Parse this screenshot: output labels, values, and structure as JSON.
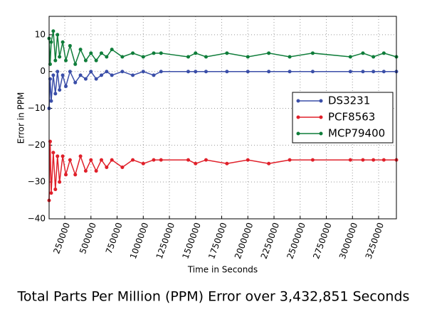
{
  "chart_data": {
    "type": "line",
    "title": "Total Parts Per Million (PPM) Error over 3,432,851 Seconds",
    "x_label": "Time in Seconds",
    "y_label": "Error in PPM",
    "x": [
      100000,
      110000,
      120000,
      140000,
      160000,
      180000,
      200000,
      230000,
      260000,
      300000,
      350000,
      400000,
      450000,
      500000,
      550000,
      600000,
      650000,
      700000,
      800000,
      900000,
      1000000,
      1100000,
      1170000,
      1430000,
      1500000,
      1600000,
      1800000,
      2000000,
      2200000,
      2400000,
      2620000,
      2980000,
      3100000,
      3200000,
      3300000,
      3420000
    ],
    "series": [
      {
        "name": "DS3231",
        "color": "#3a4ea8",
        "values": [
          -10,
          -2,
          -8,
          -1,
          -6,
          0,
          -5,
          -1,
          -4,
          0,
          -3,
          -1,
          -2,
          0,
          -2,
          -1,
          0,
          -1,
          0,
          -1,
          0,
          -1,
          0,
          0,
          0,
          0,
          0,
          0,
          0,
          0,
          0,
          0,
          0,
          0,
          0,
          0
        ]
      },
      {
        "name": "PCF8563",
        "color": "#e0202a",
        "values": [
          -35,
          -19,
          -33,
          -22,
          -32,
          -23,
          -30,
          -23,
          -28,
          -24,
          -28,
          -23,
          -27,
          -24,
          -27,
          -24,
          -26,
          -24,
          -26,
          -24,
          -25,
          -24,
          -24,
          -24,
          -25,
          -24,
          -25,
          -24,
          -25,
          -24,
          -24,
          -24,
          -24,
          -24,
          -24,
          -24
        ]
      },
      {
        "name": "MCP79400",
        "color": "#0f7d3a",
        "values": [
          9,
          2,
          8,
          11,
          3,
          10,
          4,
          8,
          3,
          7,
          2,
          6,
          3,
          5,
          3,
          5,
          4,
          6,
          4,
          5,
          4,
          5,
          5,
          4,
          5,
          4,
          5,
          4,
          5,
          4,
          5,
          4,
          5,
          4,
          5,
          4
        ]
      }
    ],
    "xlim": [
      100000,
      3420000
    ],
    "ylim": [
      -40,
      15
    ],
    "xticks": [
      250000,
      500000,
      750000,
      1000000,
      1250000,
      1500000,
      1750000,
      2000000,
      2250000,
      2500000,
      2750000,
      3000000,
      3250000
    ],
    "yticks": [
      {
        "value": -40,
        "label": "−40"
      },
      {
        "value": -30,
        "label": "−30"
      },
      {
        "value": -20,
        "label": "−20"
      },
      {
        "value": -10,
        "label": "−10"
      },
      0,
      10
    ],
    "grid": true,
    "legend": "right"
  }
}
